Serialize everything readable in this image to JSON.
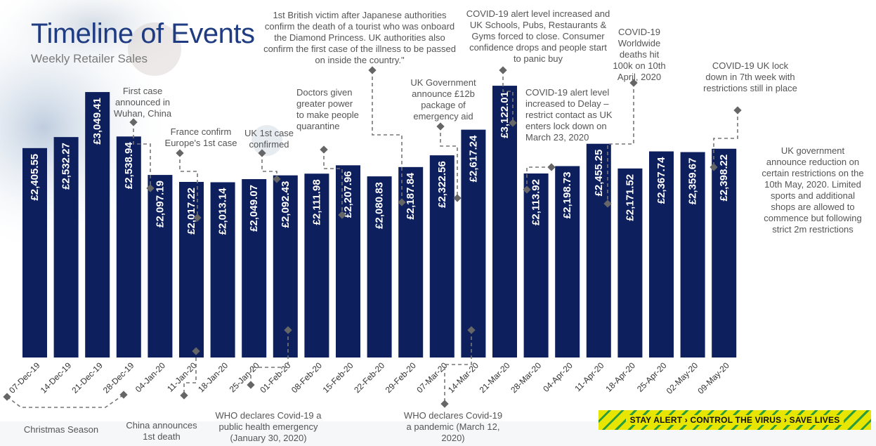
{
  "header": {
    "title": "Timeline of Events",
    "subtitle": "Weekly Retailer Sales"
  },
  "chart_data": {
    "type": "bar",
    "title": "Timeline of Events",
    "subtitle": "Weekly Retailer Sales",
    "xlabel": "",
    "ylabel": "",
    "ylim": [
      0,
      3300
    ],
    "grid": false,
    "bar_color": "#0d1f5c",
    "categories": [
      "07-Dec-19",
      "14-Dec-19",
      "21-Dec-19",
      "28-Dec-19",
      "04-Jan-20",
      "11-Jan-20",
      "18-Jan-20",
      "25-Jan-20",
      "01-Feb-20",
      "08-Feb-20",
      "15-Feb-20",
      "22-Feb-20",
      "29-Feb-20",
      "07-Mar-20",
      "14-Mar-20",
      "21-Mar-20",
      "28-Mar-20",
      "04-Apr-20",
      "11-Apr-20",
      "18-Apr-20",
      "25-Apr-20",
      "02-May-20",
      "09-May-20"
    ],
    "values": [
      2405.55,
      2532.27,
      3049.41,
      2538.94,
      2097.19,
      2017.22,
      2013.14,
      2049.07,
      2092.43,
      2111.98,
      2207.96,
      2080.83,
      2187.84,
      2322.56,
      2617.24,
      3122.01,
      2113.92,
      2198.73,
      2455.25,
      2171.52,
      2367.74,
      2359.67,
      2398.22
    ],
    "value_labels": [
      "£2,405.55",
      "£2,532.27",
      "£3,049.41",
      "£2,538.94",
      "£2,097.19",
      "£2,017.22",
      "£2,013.14",
      "£2,049.07",
      "£2,092.43",
      "£2,111.98",
      "£2,207.96",
      "£2,080.83",
      "£2,187.84",
      "£2,322.56",
      "£2,617.24",
      "£3,122.01",
      "£2,113.92",
      "£2,198.73",
      "£2,455.25",
      "£2,171.52",
      "£2,367.74",
      "£2,359.67",
      "£2,398.22"
    ]
  },
  "annotations": {
    "first_case": "First case announced in Wuhan, China",
    "france": "France confirm Europe's 1st case",
    "uk_first": "UK 1st case confirmed",
    "doctors": "Doctors given greater power to make people quarantine",
    "british_victim": "1st British victim after Japanese authorities confirm the death of a tourist who was onboard the Diamond Princess. UK authorities also confirm the first case of the illness to be passed on inside the country.\"",
    "uk_gov_12b": "UK Government announce £12b package of emergency aid",
    "alert_increased": "COVID-19 alert level increased and UK Schools, Pubs, Restaurants & Gyms forced to close. Consumer confidence drops and people start to panic buy",
    "alert_delay": "COVID-19 alert level increased to Delay – restrict contact as UK enters lock down on March 23, 2020",
    "worldwide_100k": "COVID-19 Worldwide deaths hit 100k on 10th April, 2020",
    "lockdown_7th": "COVID-19 UK lock down in 7th week with restrictions still in place",
    "reduction": "UK government announce reduction on certain restrictions on the 10th May, 2020. Limited sports and additional shops are allowed to commence but following strict 2m restrictions",
    "christmas": "Christmas Season",
    "china_death": "China announces 1st death",
    "who_emergency": "WHO declares Covid-19 a public health emergency (January 30, 2020)",
    "who_pandemic": "WHO declares Covid-19 a pandemic (March 12, 2020)"
  },
  "banner": {
    "text": "STAY ALERT › CONTROL THE VIRUS › SAVE LIVES"
  }
}
